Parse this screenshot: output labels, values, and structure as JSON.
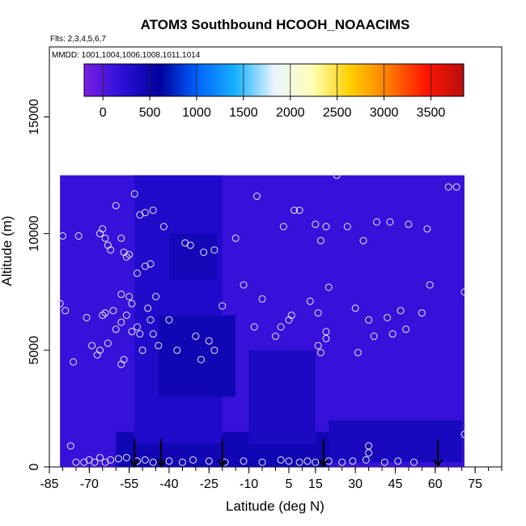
{
  "chart_data": {
    "type": "heatmap",
    "title": "ATOM3 Southbound HCOOH_NOAACIMS",
    "flights_label": "Flts: 2,3,4,5,6,7",
    "dates_label": "MMDD: 1001,1004,1006,1008,1011,1014",
    "xlabel": "Latitude (deg N)",
    "ylabel": "Altitude (m)",
    "xlim": [
      -85,
      85
    ],
    "ylim": [
      0,
      18000
    ],
    "x_ticks": [
      -85,
      -70,
      -55,
      -40,
      -25,
      -10,
      5,
      15,
      30,
      45,
      60,
      75
    ],
    "y_ticks": [
      0,
      5000,
      10000,
      15000
    ],
    "colorbar": {
      "min": -200,
      "max": 3850,
      "ticks": [
        0,
        500,
        1000,
        1500,
        2000,
        2500,
        3000,
        3500
      ],
      "colors": [
        "#7a1fe3",
        "#2b0fd8",
        "#00009c",
        "#0064ff",
        "#19b2ff",
        "#e8f4ff",
        "#ffffb8",
        "#ffd000",
        "#ff7d00",
        "#ff1500",
        "#b80f0f"
      ]
    },
    "arrow_latitudes": [
      -53,
      -43,
      -20,
      18,
      61
    ],
    "field": {
      "lat_range": [
        -81,
        71
      ],
      "alt_range": [
        0,
        12500
      ],
      "regions": [
        {
          "lat": [
            -81,
            71
          ],
          "alt": [
            0,
            12500
          ],
          "value": 150
        },
        {
          "lat": [
            -60,
            20
          ],
          "alt": [
            0,
            1500
          ],
          "value": 450
        },
        {
          "lat": [
            -53,
            -20
          ],
          "alt": [
            1000,
            12500
          ],
          "value": 300
        },
        {
          "lat": [
            -44,
            -15
          ],
          "alt": [
            3000,
            6500
          ],
          "value": 450
        },
        {
          "lat": [
            -40,
            -22
          ],
          "alt": [
            8000,
            10000
          ],
          "value": 420
        },
        {
          "lat": [
            -10,
            15
          ],
          "alt": [
            1000,
            5000
          ],
          "value": 350
        },
        {
          "lat": [
            20,
            70
          ],
          "alt": [
            200,
            2000
          ],
          "value": 380
        }
      ]
    },
    "observations": [
      {
        "lat": -81,
        "alt": 7000
      },
      {
        "lat": -79,
        "alt": 6700
      },
      {
        "lat": -80,
        "alt": 9900
      },
      {
        "lat": -74,
        "alt": 9900
      },
      {
        "lat": -76,
        "alt": 4500
      },
      {
        "lat": -71,
        "alt": 6400
      },
      {
        "lat": -69,
        "alt": 5200
      },
      {
        "lat": -66,
        "alt": 10000
      },
      {
        "lat": -65,
        "alt": 10200
      },
      {
        "lat": -64,
        "alt": 9800
      },
      {
        "lat": -63,
        "alt": 9500
      },
      {
        "lat": -62,
        "alt": 9300
      },
      {
        "lat": -65,
        "alt": 6500
      },
      {
        "lat": -64,
        "alt": 6600
      },
      {
        "lat": -61,
        "alt": 6700
      },
      {
        "lat": -67,
        "alt": 4800
      },
      {
        "lat": -66,
        "alt": 5000
      },
      {
        "lat": -63,
        "alt": 5300
      },
      {
        "lat": -60,
        "alt": 5900
      },
      {
        "lat": -60,
        "alt": 11200
      },
      {
        "lat": -58,
        "alt": 9800
      },
      {
        "lat": -57,
        "alt": 9200
      },
      {
        "lat": -56,
        "alt": 9000
      },
      {
        "lat": -55,
        "alt": 9100
      },
      {
        "lat": -58,
        "alt": 7400
      },
      {
        "lat": -55,
        "alt": 7300
      },
      {
        "lat": -54,
        "alt": 7000
      },
      {
        "lat": -58,
        "alt": 6200
      },
      {
        "lat": -56,
        "alt": 6500
      },
      {
        "lat": -58,
        "alt": 4400
      },
      {
        "lat": -57,
        "alt": 4600
      },
      {
        "lat": -54,
        "alt": 5800
      },
      {
        "lat": -52,
        "alt": 6000
      },
      {
        "lat": -51,
        "alt": 5700
      },
      {
        "lat": -53,
        "alt": 11700
      },
      {
        "lat": -51,
        "alt": 10800
      },
      {
        "lat": -49,
        "alt": 10900
      },
      {
        "lat": -46,
        "alt": 11000
      },
      {
        "lat": -49,
        "alt": 8600
      },
      {
        "lat": -47,
        "alt": 8700
      },
      {
        "lat": -48,
        "alt": 6800
      },
      {
        "lat": -47,
        "alt": 6300
      },
      {
        "lat": -45,
        "alt": 7300
      },
      {
        "lat": -50,
        "alt": 5000
      },
      {
        "lat": -46,
        "alt": 5700
      },
      {
        "lat": -44,
        "alt": 5200
      },
      {
        "lat": -52,
        "alt": 8300
      },
      {
        "lat": -42,
        "alt": 10300
      },
      {
        "lat": -40,
        "alt": 6300
      },
      {
        "lat": -37,
        "alt": 5000
      },
      {
        "lat": -34,
        "alt": 9600
      },
      {
        "lat": -32,
        "alt": 9500
      },
      {
        "lat": -27,
        "alt": 9200
      },
      {
        "lat": -23,
        "alt": 9300
      },
      {
        "lat": -30,
        "alt": 5600
      },
      {
        "lat": -28,
        "alt": 4600
      },
      {
        "lat": -25,
        "alt": 5400
      },
      {
        "lat": -23,
        "alt": 5000
      },
      {
        "lat": -20,
        "alt": 6900
      },
      {
        "lat": -15,
        "alt": 9800
      },
      {
        "lat": -12,
        "alt": 7800
      },
      {
        "lat": -7,
        "alt": 11600
      },
      {
        "lat": -5,
        "alt": 7200
      },
      {
        "lat": -8,
        "alt": 6000
      },
      {
        "lat": 0,
        "alt": 5600
      },
      {
        "lat": 2,
        "alt": 6000
      },
      {
        "lat": 3,
        "alt": 10300
      },
      {
        "lat": 5,
        "alt": 6300
      },
      {
        "lat": 6,
        "alt": 6500
      },
      {
        "lat": 7,
        "alt": 11000
      },
      {
        "lat": 9,
        "alt": 11000
      },
      {
        "lat": 13,
        "alt": 7100
      },
      {
        "lat": 15,
        "alt": 10400
      },
      {
        "lat": 16,
        "alt": 6600
      },
      {
        "lat": 17,
        "alt": 9700
      },
      {
        "lat": 19,
        "alt": 10300
      },
      {
        "lat": 20,
        "alt": 7700
      },
      {
        "lat": 16,
        "alt": 5200
      },
      {
        "lat": 17,
        "alt": 4900
      },
      {
        "lat": 19,
        "alt": 5800
      },
      {
        "lat": 19,
        "alt": 5500
      },
      {
        "lat": 27,
        "alt": 10300
      },
      {
        "lat": 30,
        "alt": 6800
      },
      {
        "lat": 31,
        "alt": 4900
      },
      {
        "lat": 33,
        "alt": 9700
      },
      {
        "lat": 35,
        "alt": 6300
      },
      {
        "lat": 37,
        "alt": 5600
      },
      {
        "lat": 38,
        "alt": 10500
      },
      {
        "lat": 42,
        "alt": 6400
      },
      {
        "lat": 43,
        "alt": 10500
      },
      {
        "lat": 44,
        "alt": 5700
      },
      {
        "lat": 47,
        "alt": 6700
      },
      {
        "lat": 49,
        "alt": 5900
      },
      {
        "lat": 50,
        "alt": 10400
      },
      {
        "lat": 55,
        "alt": 6600
      },
      {
        "lat": 57,
        "alt": 10200
      },
      {
        "lat": 58,
        "alt": 7800
      },
      {
        "lat": 65,
        "alt": 12000
      },
      {
        "lat": 68,
        "alt": 12000
      },
      {
        "lat": 71,
        "alt": 7500
      },
      {
        "lat": 71,
        "alt": 1400
      },
      {
        "lat": 35,
        "alt": 600
      },
      {
        "lat": 35,
        "alt": 900
      },
      {
        "lat": 23,
        "alt": 12500
      },
      {
        "lat": -77,
        "alt": 900
      },
      {
        "lat": -75,
        "alt": 200
      },
      {
        "lat": -72,
        "alt": 200
      },
      {
        "lat": -70,
        "alt": 300
      },
      {
        "lat": -68,
        "alt": 200
      },
      {
        "lat": -66,
        "alt": 400
      },
      {
        "lat": -64,
        "alt": 200
      },
      {
        "lat": -62,
        "alt": 300
      },
      {
        "lat": -59,
        "alt": 350
      },
      {
        "lat": -56,
        "alt": 400
      },
      {
        "lat": -52,
        "alt": 250
      },
      {
        "lat": -49,
        "alt": 300
      },
      {
        "lat": -46,
        "alt": 200
      },
      {
        "lat": -40,
        "alt": 250
      },
      {
        "lat": -35,
        "alt": 200
      },
      {
        "lat": -31,
        "alt": 300
      },
      {
        "lat": -25,
        "alt": 250
      },
      {
        "lat": -19,
        "alt": 200
      },
      {
        "lat": -12,
        "alt": 250
      },
      {
        "lat": -5,
        "alt": 200
      },
      {
        "lat": 2,
        "alt": 300
      },
      {
        "lat": 5,
        "alt": 250
      },
      {
        "lat": 9,
        "alt": 200
      },
      {
        "lat": 12,
        "alt": 250
      },
      {
        "lat": 15,
        "alt": 200
      },
      {
        "lat": 20,
        "alt": 250
      },
      {
        "lat": 25,
        "alt": 200
      },
      {
        "lat": 29,
        "alt": 250
      },
      {
        "lat": 34,
        "alt": 300
      },
      {
        "lat": 41,
        "alt": 200
      },
      {
        "lat": 46,
        "alt": 250
      },
      {
        "lat": 52,
        "alt": 200
      }
    ]
  }
}
